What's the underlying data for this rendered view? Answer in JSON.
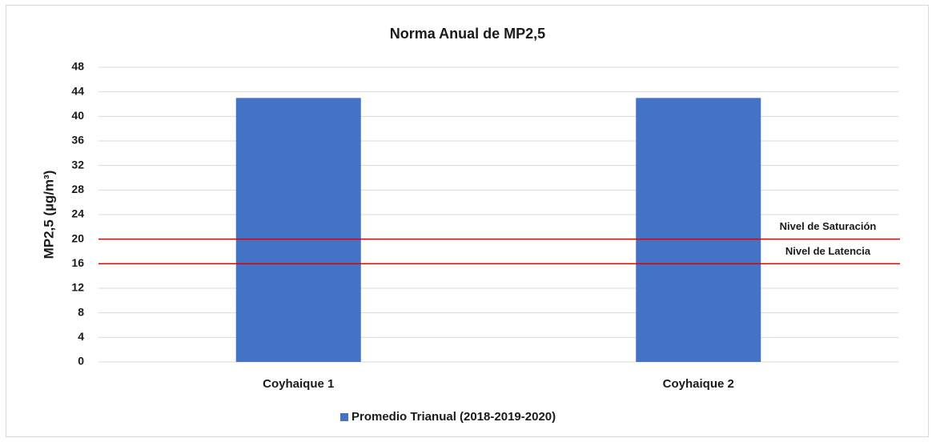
{
  "chart_data": {
    "type": "bar",
    "title": "Norma Anual de MP2,5",
    "y_label": "MP2,5 (µg/m³)",
    "categories": [
      "Coyhaique 1",
      "Coyhaique 2"
    ],
    "series": [
      {
        "name": "Promedio Trianual (2018-2019-2020)",
        "color": "#4472c4",
        "values": [
          43,
          43
        ]
      }
    ],
    "reference_lines": [
      {
        "label": "Nivel de Saturación",
        "value": 20,
        "color": "#e00000"
      },
      {
        "label": "Nivel de Latencia",
        "value": 16,
        "color": "#e00000"
      }
    ],
    "ylim": [
      0,
      48
    ],
    "yticks": [
      0,
      4,
      8,
      12,
      16,
      20,
      24,
      28,
      32,
      36,
      40,
      44,
      48
    ],
    "grid": true,
    "legend": "bottom"
  }
}
